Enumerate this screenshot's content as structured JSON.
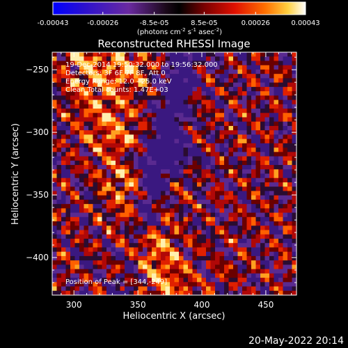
{
  "chart_data": {
    "type": "heatmap",
    "title": "Reconstructed RHESSI Image",
    "xlabel": "Heliocentric X (arcsec)",
    "ylabel": "Heliocentric Y (arcsec)",
    "xlim": [
      283,
      474
    ],
    "ylim": [
      -430,
      -236
    ],
    "x_ticks": [
      300,
      350,
      400,
      450
    ],
    "y_ticks": [
      -250,
      -300,
      -350,
      -400
    ],
    "colorbar": {
      "range": [
        -0.00043,
        0.00043
      ],
      "tick_values": [
        -0.00043,
        -0.00026,
        -8.5e-05,
        8.5e-05,
        0.00026,
        0.00043
      ],
      "tick_labels": [
        "-0.00043",
        "-0.00026",
        "-8.5e-05",
        "8.5e-05",
        "0.00026",
        "0.00043"
      ],
      "units_text": "(photons cm",
      "units_exp1": "-2",
      "units_mid": " s",
      "units_exp2": "-1",
      "units_end": " asec",
      "units_exp3": "-2",
      "units_close": ")",
      "colormap": "RHESSI red-temperature (blue/purple negative, red-yellow-white positive)"
    },
    "annotations": [
      "19-Dec-2014 19:50:32.000 to 19:56:32.000",
      "Detectors: 3F 6F 7F 8F, Att 0",
      "Energy Range: 12.0 - 25.0 keV",
      "Clean    Total counts: 1.47E+03"
    ],
    "peak_label": "Position of Peak = [344,-249]",
    "peak_position": [
      344,
      -249
    ],
    "image_grid_cells": [
      54,
      56
    ],
    "field_structure": "bright arc along left side, dark (negative) channel from top-center down through center, ringing pattern elsewhere"
  },
  "footer": {
    "timestamp": "20-May-2022 20:14"
  },
  "colors": {
    "background": "#000000",
    "text": "#ffffff",
    "negative": "#3a1a8a",
    "positive_low": "#c01010",
    "positive_high": "#ffd040"
  }
}
